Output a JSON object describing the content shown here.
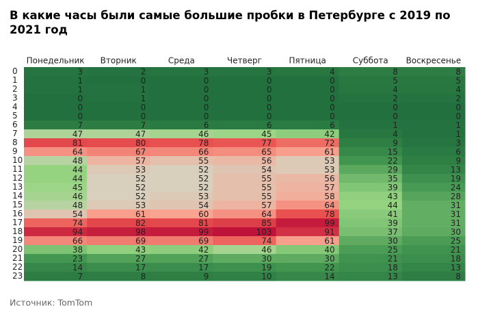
{
  "chart_data": {
    "type": "heatmap",
    "title": "В какие часы были самые большие пробки в Петербурге с 2019 по 2021 год",
    "columns": [
      "Понедельник",
      "Вторник",
      "Среда",
      "Четверг",
      "Пятница",
      "Суббота",
      "Воскресенье"
    ],
    "rows": [
      "0",
      "1",
      "2",
      "3",
      "4",
      "5",
      "6",
      "7",
      "8",
      "9",
      "10",
      "11",
      "12",
      "13",
      "14",
      "15",
      "16",
      "17",
      "18",
      "19",
      "20",
      "21",
      "22",
      "23"
    ],
    "values": [
      [
        3,
        2,
        3,
        3,
        4,
        8,
        8
      ],
      [
        1,
        0,
        0,
        0,
        0,
        5,
        5
      ],
      [
        1,
        1,
        0,
        0,
        0,
        4,
        4
      ],
      [
        0,
        1,
        0,
        0,
        0,
        2,
        2
      ],
      [
        0,
        0,
        0,
        0,
        0,
        0,
        0
      ],
      [
        0,
        0,
        0,
        0,
        0,
        0,
        0
      ],
      [
        7,
        7,
        6,
        6,
        6,
        1,
        1
      ],
      [
        47,
        47,
        46,
        45,
        42,
        4,
        1
      ],
      [
        81,
        80,
        78,
        77,
        72,
        9,
        3
      ],
      [
        64,
        67,
        66,
        65,
        61,
        15,
        6
      ],
      [
        48,
        57,
        55,
        56,
        53,
        22,
        9
      ],
      [
        44,
        53,
        52,
        54,
        53,
        29,
        13
      ],
      [
        44,
        52,
        52,
        55,
        56,
        35,
        19
      ],
      [
        45,
        52,
        52,
        55,
        57,
        39,
        24
      ],
      [
        46,
        52,
        53,
        55,
        58,
        43,
        28
      ],
      [
        48,
        53,
        54,
        57,
        64,
        44,
        31
      ],
      [
        54,
        61,
        60,
        64,
        78,
        41,
        31
      ],
      [
        74,
        82,
        81,
        85,
        99,
        39,
        31
      ],
      [
        94,
        98,
        99,
        103,
        91,
        37,
        30
      ],
      [
        66,
        69,
        69,
        74,
        61,
        30,
        25
      ],
      [
        38,
        43,
        42,
        46,
        40,
        25,
        21
      ],
      [
        23,
        27,
        27,
        30,
        30,
        21,
        18
      ],
      [
        14,
        17,
        17,
        19,
        22,
        18,
        13
      ],
      [
        7,
        8,
        9,
        10,
        14,
        13,
        8
      ]
    ],
    "source": "Источник: TomTom"
  }
}
